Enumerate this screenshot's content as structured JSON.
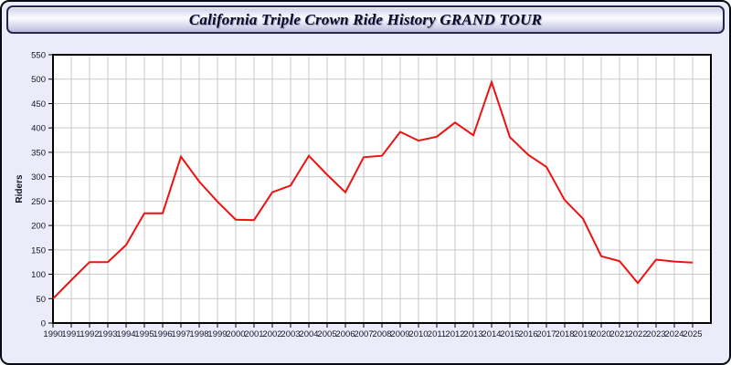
{
  "page": {
    "title": "California Triple Crown Ride History GRAND TOUR"
  },
  "colors": {
    "page_bg": "#ebebfa",
    "plot_bg": "#ffffff",
    "grid": "#c9c9c9",
    "axis": "#000000",
    "tick_text": "#15152a",
    "line": "#ee1111",
    "header_border": "#26264f",
    "outer_border": "#0a0a14"
  },
  "chart_data": {
    "type": "line",
    "title": "California Triple Crown Ride History GRAND TOUR",
    "xlabel": "",
    "ylabel": "Riders",
    "x": [
      1990,
      1991,
      1992,
      1993,
      1994,
      1995,
      1996,
      1997,
      1998,
      1999,
      2000,
      2001,
      2002,
      2003,
      2004,
      2005,
      2006,
      2007,
      2008,
      2009,
      2010,
      2011,
      2012,
      2013,
      2014,
      2015,
      2016,
      2017,
      2018,
      2019,
      2020,
      2021,
      2022,
      2023,
      2024,
      2025
    ],
    "series": [
      {
        "name": "Riders",
        "color": "#ee1111",
        "values": [
          50,
          88,
          125,
          125,
          160,
          225,
          225,
          341,
          290,
          249,
          212,
          211,
          268,
          282,
          343,
          304,
          268,
          340,
          343,
          392,
          374,
          382,
          411,
          385,
          494,
          381,
          345,
          320,
          252,
          214,
          137,
          127,
          82,
          130,
          126,
          124
        ]
      }
    ],
    "ylim": [
      0,
      550
    ],
    "ytick_interval": 50,
    "xlim": [
      1990,
      2026
    ],
    "grid": true,
    "legend_position": "none",
    "marker": "none"
  }
}
